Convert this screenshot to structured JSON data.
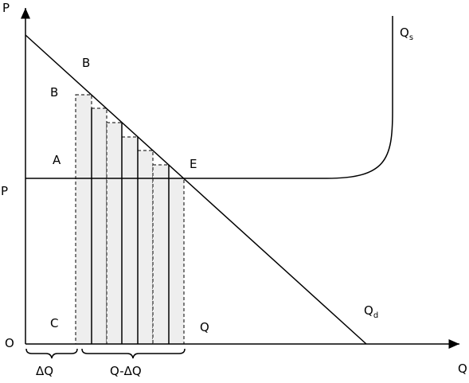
{
  "axes": {
    "y_label": "P",
    "x_label": "Q",
    "origin": "O"
  },
  "points": {
    "b_curve": "B",
    "b_bar": "B",
    "a": "A",
    "e": "E",
    "c": "C",
    "q_quantity": "Q",
    "p_price": "P"
  },
  "curves": {
    "supply": {
      "main": "Q",
      "sub": "s"
    },
    "demand": {
      "main": "Q",
      "sub": "d"
    }
  },
  "braces": {
    "delta_q": "ΔQ",
    "q_minus_delta_q": "Q-ΔQ"
  }
}
